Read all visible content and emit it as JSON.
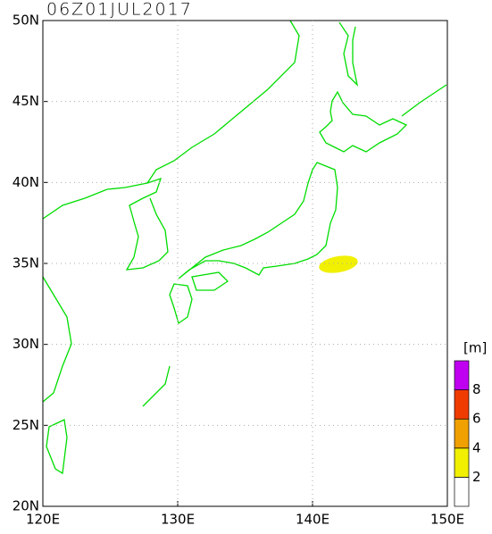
{
  "title": "06Z01JUL2017",
  "map": {
    "xlim": [
      120,
      150
    ],
    "ylim": [
      20,
      50
    ],
    "xticks": [
      {
        "value": 120,
        "label": "120E"
      },
      {
        "value": 130,
        "label": "130E"
      },
      {
        "value": 140,
        "label": "140E"
      },
      {
        "value": 150,
        "label": "150E"
      }
    ],
    "yticks": [
      {
        "value": 20,
        "label": "20N"
      },
      {
        "value": 25,
        "label": "25N"
      },
      {
        "value": 30,
        "label": "30N"
      },
      {
        "value": 35,
        "label": "35N"
      },
      {
        "value": 40,
        "label": "40N"
      },
      {
        "value": 45,
        "label": "45N"
      },
      {
        "value": 50,
        "label": "50N"
      }
    ],
    "grid": true,
    "coast_color": "#00dd00"
  },
  "legend": {
    "unit": "[m]",
    "levels": [
      2,
      4,
      6,
      8
    ],
    "colors": [
      "#ffffff",
      "#f0f000",
      "#f0a000",
      "#f03c00",
      "#c000f0"
    ]
  }
}
